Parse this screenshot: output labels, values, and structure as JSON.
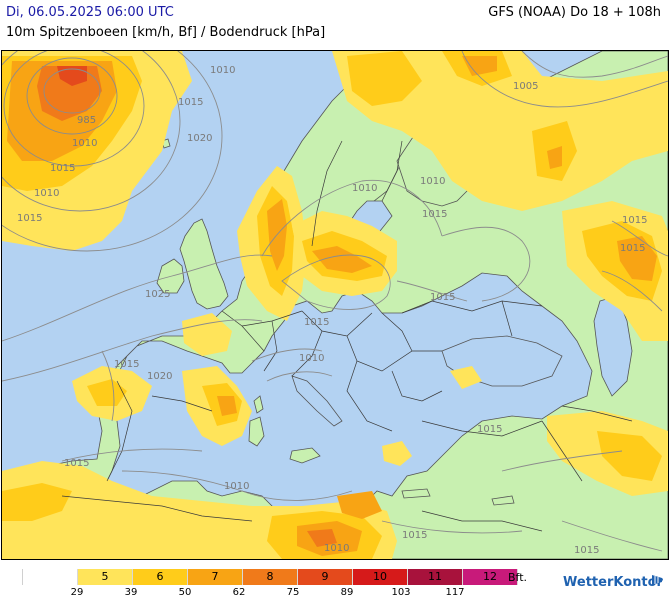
{
  "header": {
    "date": "Di, 06.05.2025 06:00 UTC",
    "subtitle": "10m Spitzenboeen [km/h, Bf] / Bodendruck [hPa]",
    "model": "GFS (NOAA) Do 18 + 108h"
  },
  "colors": {
    "sea": "#b3d2f2",
    "land": "#c8f0b0",
    "bft5": "#ffe45a",
    "bft6": "#ffcc1a",
    "bft7": "#f8a414",
    "bft8": "#f07a1a",
    "bft9": "#e44a1c",
    "isobar": "#8c8c8c",
    "border": "#3a3a3a"
  },
  "pressure_labels": [
    "985",
    "1010",
    "1015",
    "1020",
    "1010",
    "1015",
    "1015",
    "1010",
    "1005",
    "1010",
    "1015",
    "1015",
    "1025",
    "1015",
    "1010",
    "1015",
    "1015",
    "1020",
    "1010",
    "1015",
    "1015",
    "1010",
    "1015",
    "1010",
    "1015",
    "1015"
  ],
  "legend": {
    "unit_label": "Bft.",
    "classes": [
      {
        "bft": "",
        "color": "#ffffff"
      },
      {
        "bft": "5",
        "color": "#ffe45a"
      },
      {
        "bft": "6",
        "color": "#ffcc1a"
      },
      {
        "bft": "7",
        "color": "#f8a414"
      },
      {
        "bft": "8",
        "color": "#f07a1a"
      },
      {
        "bft": "9",
        "color": "#e44a1c"
      },
      {
        "bft": "10",
        "color": "#d61a1a"
      },
      {
        "bft": "11",
        "color": "#a8123c"
      },
      {
        "bft": "12",
        "color": "#c81a7a"
      }
    ],
    "kmh": [
      "29",
      "39",
      "50",
      "62",
      "75",
      "89",
      "103",
      "117"
    ]
  },
  "brand": "WetterKontor"
}
